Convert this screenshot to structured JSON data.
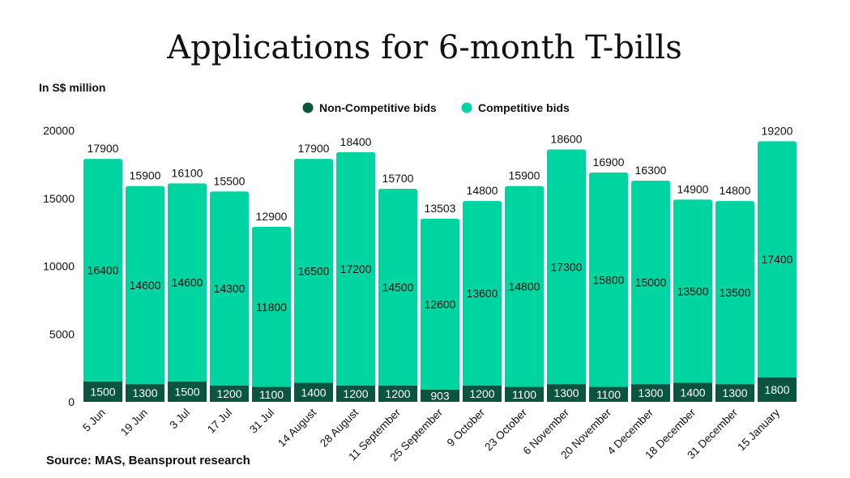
{
  "chart_data": {
    "type": "bar",
    "stacked": true,
    "title": "Applications for 6-month T-bills",
    "ylabel": "In S$ million",
    "source": "Source: MAS, Beansprout research",
    "ylim": [
      0,
      20000
    ],
    "yticks": [
      0,
      5000,
      10000,
      15000,
      20000
    ],
    "grid": false,
    "legend_position": "top-center",
    "categories": [
      "5 Jun",
      "19 Jun",
      "3 Jul",
      "17 Jul",
      "31 Jul",
      "14 August",
      "28 August",
      "11 September",
      "25 September",
      "9 October",
      "23 October",
      "6 November",
      "20 November",
      "4 December",
      "18 December",
      "31 December",
      "15 January"
    ],
    "series": [
      {
        "name": "Non-Competitive bids",
        "color": "#0b5440",
        "values": [
          1500,
          1300,
          1500,
          1200,
          1100,
          1400,
          1200,
          1200,
          903,
          1200,
          1100,
          1300,
          1100,
          1300,
          1400,
          1300,
          1800
        ]
      },
      {
        "name": "Competitive bids",
        "color": "#00d4a0",
        "values": [
          16400,
          14600,
          14600,
          14300,
          11800,
          16500,
          17200,
          14500,
          12600,
          13600,
          14800,
          17300,
          15800,
          15000,
          13500,
          13500,
          17400
        ]
      }
    ],
    "totals": [
      17900,
      15900,
      16100,
      15500,
      12900,
      17900,
      18400,
      15700,
      13503,
      14800,
      15900,
      18600,
      16900,
      16300,
      14900,
      14800,
      19200
    ]
  }
}
